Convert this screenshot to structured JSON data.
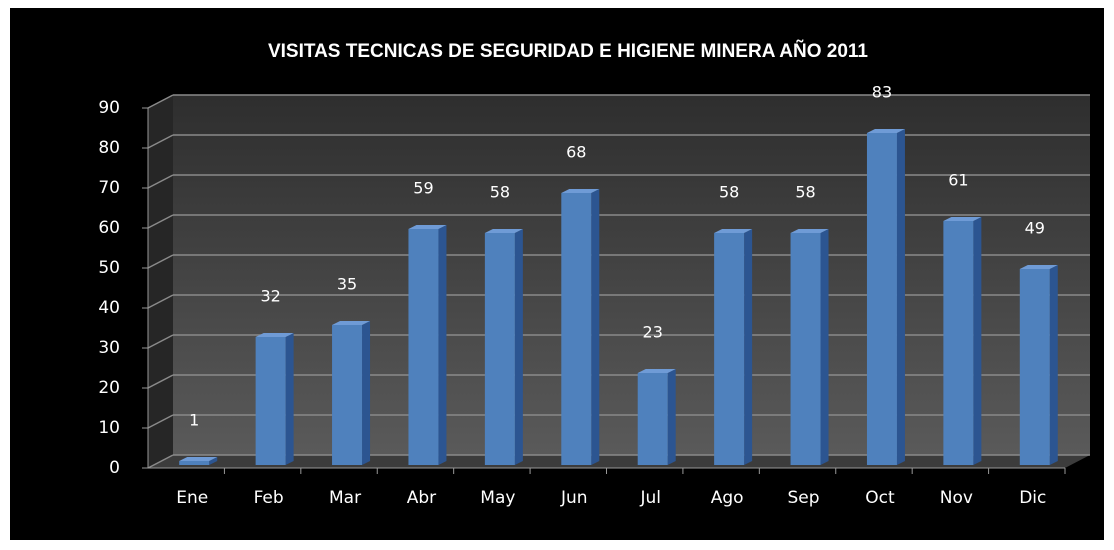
{
  "chart_data": {
    "type": "bar",
    "title": "VISITAS TECNICAS DE SEGURIDAD E HIGIENE MINERA  AÑO 2011",
    "categories": [
      "Ene",
      "Feb",
      "Mar",
      "Abr",
      "May",
      "Jun",
      "Jul",
      "Ago",
      "Sep",
      "Oct",
      "Nov",
      "Dic"
    ],
    "values": [
      1,
      32,
      35,
      59,
      58,
      68,
      23,
      58,
      58,
      83,
      61,
      49
    ],
    "color": "#4f81bd",
    "ylim": [
      0,
      90
    ],
    "yticks": [
      0,
      10,
      20,
      30,
      40,
      50,
      60,
      70,
      80,
      90
    ],
    "grid": true
  }
}
